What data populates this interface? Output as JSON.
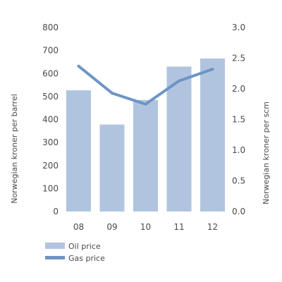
{
  "chart_data": {
    "type": "bar",
    "categories": [
      "08",
      "09",
      "10",
      "11",
      "12"
    ],
    "series": [
      {
        "name": "Oil price",
        "type": "bar",
        "axis": "left",
        "values": [
          527,
          378,
          485,
          630,
          665
        ],
        "color": "#b1c4df"
      },
      {
        "name": "Gas price",
        "type": "line",
        "axis": "right",
        "values": [
          2.37,
          1.93,
          1.75,
          2.13,
          2.32
        ],
        "color": "#6e95c4"
      }
    ],
    "ylabel": "Norwegian kroner per barrel",
    "y2label": "Norwegian kroner per scm",
    "ylim": [
      0,
      800
    ],
    "y2lim": [
      0,
      3.0
    ],
    "yticks": [
      "0",
      "100",
      "200",
      "300",
      "400",
      "500",
      "600",
      "700",
      "800"
    ],
    "y2ticks": [
      "0.0",
      "0.5",
      "1.0",
      "1.5",
      "2.0",
      "2.5",
      "3.0"
    ],
    "grid": false,
    "legend": "bottom-left"
  }
}
